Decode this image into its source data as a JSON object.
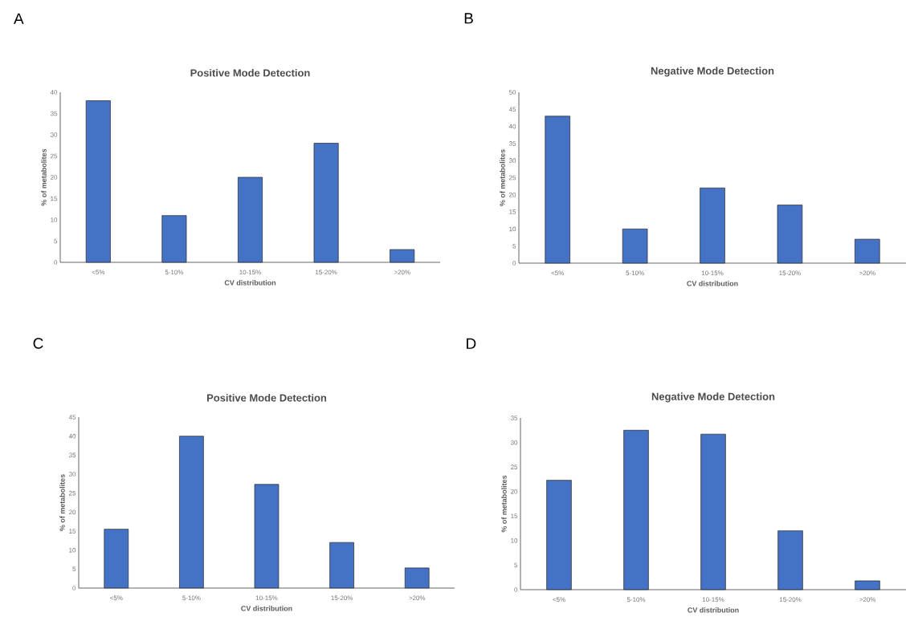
{
  "chart_data": [
    {
      "type": "bar",
      "title": "Positive Mode Detection",
      "xlabel": "CV distribution",
      "ylabel": "% of metabolites",
      "annotations": [
        "A"
      ],
      "categories": [
        "<5%",
        "5-10%",
        "10-15%",
        "15-20%",
        ">20%"
      ],
      "values": [
        38,
        11,
        20,
        28,
        3
      ],
      "color": "#4472c4",
      "ylim": [
        0,
        40
      ],
      "yticks": [
        0,
        5,
        10,
        15,
        20,
        25,
        30,
        35,
        40
      ],
      "grid": false
    },
    {
      "type": "bar",
      "title": "Negative Mode Detection",
      "xlabel": "CV distribution",
      "ylabel": "% of metabolites",
      "annotations": [
        "B"
      ],
      "categories": [
        "<5%",
        "5-10%",
        "10-15%",
        "15-20%",
        ">20%"
      ],
      "values": [
        43,
        10,
        22,
        17,
        7
      ],
      "color": "#4472c4",
      "ylim": [
        0,
        50
      ],
      "yticks": [
        0,
        5,
        10,
        15,
        20,
        25,
        30,
        35,
        40,
        45,
        50
      ],
      "grid": false
    },
    {
      "type": "bar",
      "title": "Positive Mode Detection",
      "xlabel": "CV distribution",
      "ylabel": "% of metabolites",
      "annotations": [
        "C"
      ],
      "categories": [
        "<5%",
        "5-10%",
        "10-15%",
        "15-20%",
        ">20%"
      ],
      "values": [
        15.5,
        40,
        27.3,
        12,
        5.3
      ],
      "color": "#4472c4",
      "ylim": [
        0,
        45
      ],
      "yticks": [
        0,
        5,
        10,
        15,
        20,
        25,
        30,
        35,
        40,
        45
      ],
      "grid": false
    },
    {
      "type": "bar",
      "title": "Negative Mode Detection",
      "xlabel": "CV distribution",
      "ylabel": "% of metabolites",
      "annotations": [
        "D"
      ],
      "categories": [
        "<5%",
        "5-10%",
        "10-15%",
        "15-20%",
        ">20%"
      ],
      "values": [
        22.3,
        32.5,
        31.7,
        12,
        1.8
      ],
      "color": "#4472c4",
      "ylim": [
        0,
        35
      ],
      "yticks": [
        0,
        5,
        10,
        15,
        20,
        25,
        30,
        35
      ],
      "grid": false
    }
  ]
}
